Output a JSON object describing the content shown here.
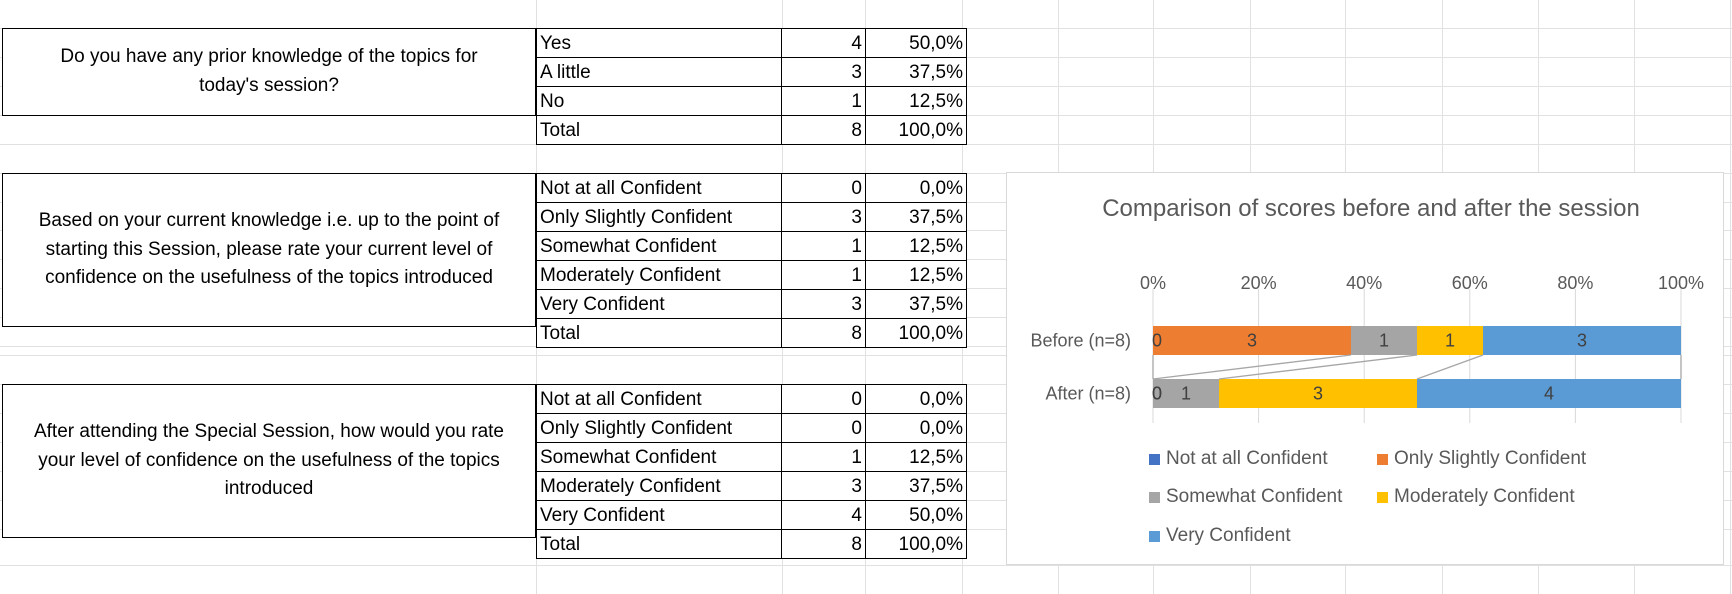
{
  "sections": [
    {
      "question_lines": [
        "Do you have any prior knowledge of the topics for",
        "today's session?"
      ],
      "rows": [
        {
          "label": "Yes",
          "count": "4",
          "percent": "50,0%"
        },
        {
          "label": "A little",
          "count": "3",
          "percent": "37,5%"
        },
        {
          "label": "No",
          "count": "1",
          "percent": "12,5%"
        },
        {
          "label": "Total",
          "count": "8",
          "percent": "100,0%"
        }
      ]
    },
    {
      "question_lines": [
        "Based on your current knowledge i.e. up to the point of",
        "starting this Session, please rate your current level of",
        "confidence on the usefulness of the topics introduced"
      ],
      "rows": [
        {
          "label": "Not at all Confident",
          "count": "0",
          "percent": "0,0%"
        },
        {
          "label": "Only Slightly Confident",
          "count": "3",
          "percent": "37,5%"
        },
        {
          "label": "Somewhat Confident",
          "count": "1",
          "percent": "12,5%"
        },
        {
          "label": "Moderately Confident",
          "count": "1",
          "percent": "12,5%"
        },
        {
          "label": "Very Confident",
          "count": "3",
          "percent": "37,5%"
        },
        {
          "label": "Total",
          "count": "8",
          "percent": "100,0%"
        }
      ]
    },
    {
      "question_lines": [
        "After attending the Special Session, how would you rate",
        "your level of confidence on the usefulness of the topics",
        "introduced"
      ],
      "rows": [
        {
          "label": "Not at all Confident",
          "count": "0",
          "percent": "0,0%"
        },
        {
          "label": "Only Slightly Confident",
          "count": "0",
          "percent": "0,0%"
        },
        {
          "label": "Somewhat Confident",
          "count": "1",
          "percent": "12,5%"
        },
        {
          "label": "Moderately Confident",
          "count": "3",
          "percent": "37,5%"
        },
        {
          "label": "Very Confident",
          "count": "4",
          "percent": "50,0%"
        },
        {
          "label": "Total",
          "count": "8",
          "percent": "100,0%"
        }
      ]
    }
  ],
  "chart_data": {
    "type": "bar",
    "orientation": "horizontal",
    "stacked": "100%",
    "title": "Comparison of scores before and after the session",
    "categories": [
      "Before (n=8)",
      "After (n=8)"
    ],
    "x_ticks": [
      "0%",
      "20%",
      "40%",
      "60%",
      "80%",
      "100%"
    ],
    "xlim": [
      0,
      1
    ],
    "series_lines": true,
    "legend_position": "bottom",
    "series": [
      {
        "name": "Not at all Confident",
        "color": "#4472c4",
        "values": [
          0,
          0
        ]
      },
      {
        "name": "Only Slightly Confident",
        "color": "#ed7d31",
        "values": [
          3,
          0
        ]
      },
      {
        "name": "Somewhat Confident",
        "color": "#a5a5a5",
        "values": [
          1,
          1
        ]
      },
      {
        "name": "Moderately Confident",
        "color": "#ffc000",
        "values": [
          1,
          3
        ]
      },
      {
        "name": "Very Confident",
        "color": "#5b9bd5",
        "values": [
          3,
          4
        ]
      }
    ],
    "colors": {
      "grid": "#d9d9d9",
      "axis_text": "#595959",
      "series_line": "#a6a6a6"
    }
  }
}
